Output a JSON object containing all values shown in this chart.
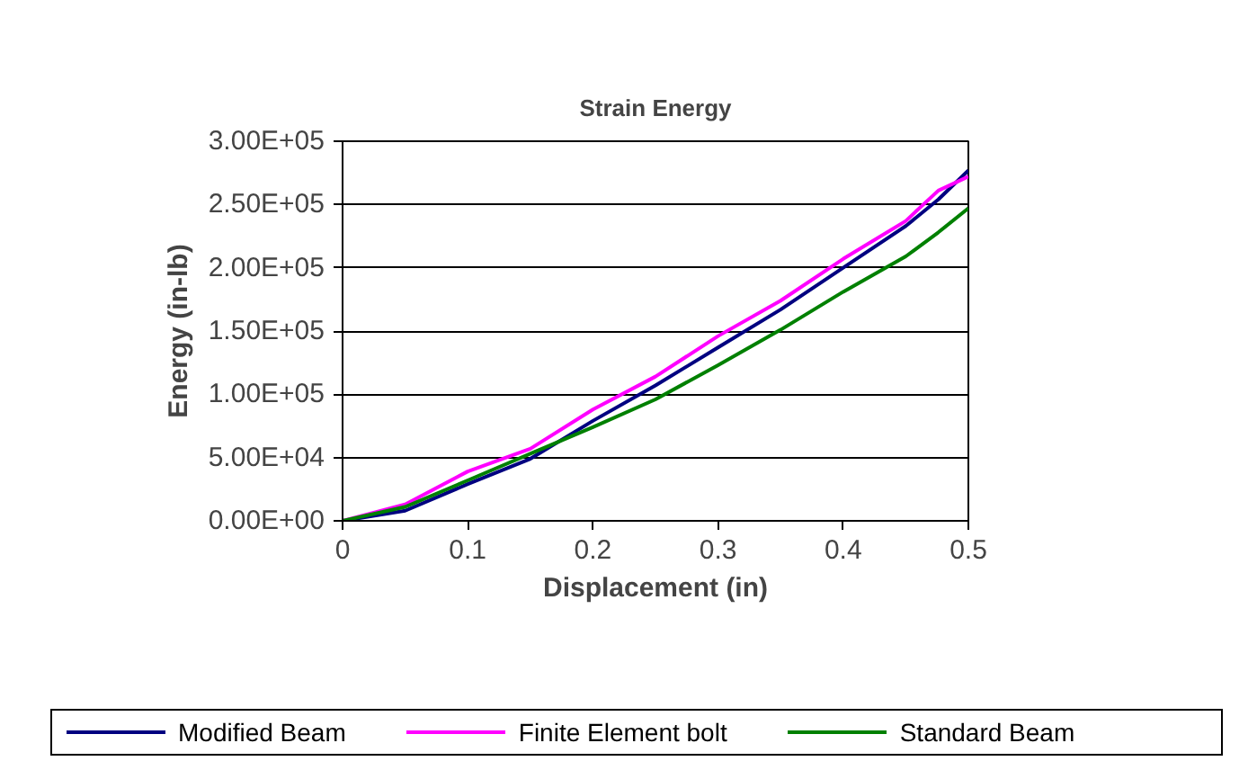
{
  "chart_data": {
    "type": "line",
    "title": "Strain Energy",
    "xlabel": "Displacement (in)",
    "ylabel": "Energy (in-lb)",
    "xlim": [
      0,
      0.5
    ],
    "xticks": [
      0,
      0.1,
      0.2,
      0.3,
      0.4,
      0.5
    ],
    "ylim": [
      0,
      300000
    ],
    "yticks": [
      {
        "value": 0,
        "label": "0.00E+00"
      },
      {
        "value": 50000,
        "label": "5.00E+04"
      },
      {
        "value": 100000,
        "label": "1.00E+05"
      },
      {
        "value": 150000,
        "label": "1.50E+05"
      },
      {
        "value": 200000,
        "label": "2.00E+05"
      },
      {
        "value": 250000,
        "label": "2.50E+05"
      },
      {
        "value": 300000,
        "label": "3.00E+05"
      }
    ],
    "grid": "y",
    "legend": "bottom",
    "marker": "none",
    "line_style": "solid",
    "x": [
      0,
      0.05,
      0.1,
      0.15,
      0.2,
      0.25,
      0.3,
      0.35,
      0.4,
      0.45,
      0.476,
      0.5
    ],
    "series": [
      {
        "name": "Modified Beam",
        "color": "#000080",
        "values": [
          0,
          8000,
          29000,
          49000,
          79000,
          107000,
          137000,
          167000,
          200000,
          233000,
          254000,
          277000
        ]
      },
      {
        "name": "Finite Element bolt",
        "color": "#ff00ff",
        "values": [
          0,
          13000,
          39000,
          57000,
          88000,
          114000,
          146000,
          174000,
          207000,
          237000,
          261000,
          272000
        ]
      },
      {
        "name": "Standard Beam",
        "color": "#008000",
        "values": [
          0,
          11000,
          32000,
          53000,
          74000,
          96000,
          123000,
          151000,
          181000,
          209000,
          228000,
          247000
        ]
      }
    ]
  }
}
